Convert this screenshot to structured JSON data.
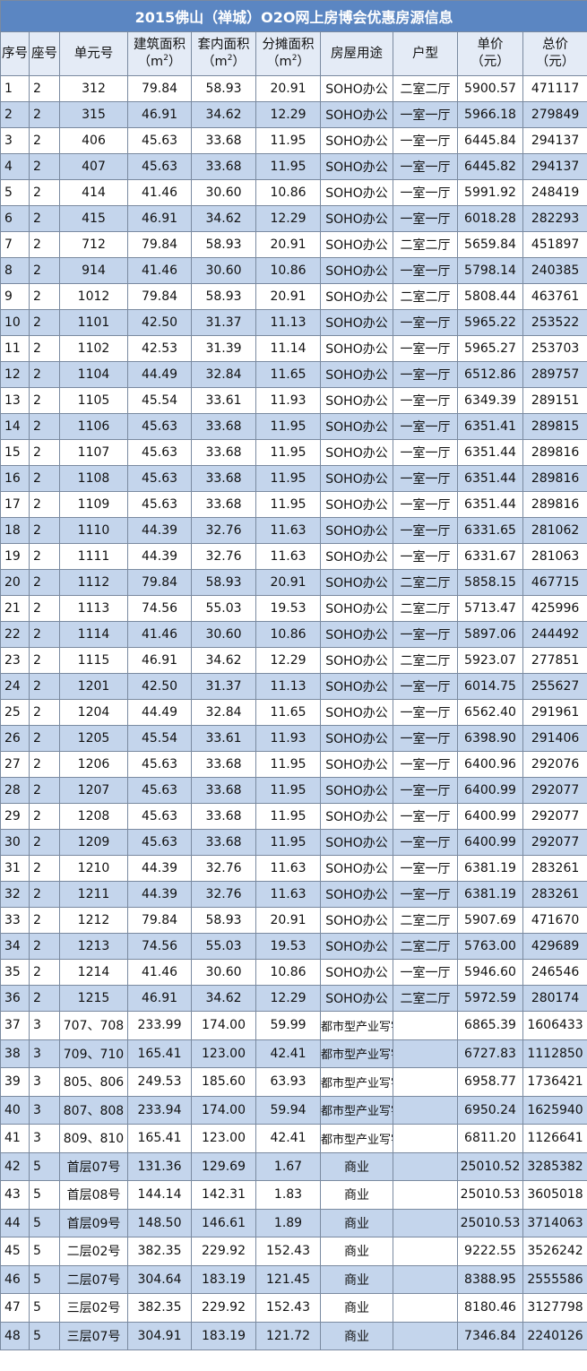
{
  "title": "2015佛山（禅城）O2O网上房博会优惠房源信息",
  "headers": {
    "index": "序号",
    "block": "座号",
    "unit": "单元号",
    "gross_area": "建筑面积",
    "inner_area": "套内面积",
    "shared_area": "分摊面积",
    "area_unit_open": "（m",
    "area_unit_sup": "2",
    "area_unit_close": "）",
    "usage": "房屋用途",
    "layout": "户型",
    "unit_price": "单价",
    "total_price": "总价",
    "currency": "（元）"
  },
  "rows": [
    {
      "no": "1",
      "block": "2",
      "unit": "312",
      "gross": "79.84",
      "inner": "58.93",
      "shared": "20.91",
      "usage": "SOHO办公",
      "layout": "二室二厅",
      "price": "5900.57",
      "total": "471117"
    },
    {
      "no": "2",
      "block": "2",
      "unit": "315",
      "gross": "46.91",
      "inner": "34.62",
      "shared": "12.29",
      "usage": "SOHO办公",
      "layout": "一室一厅",
      "price": "5966.18",
      "total": "279849"
    },
    {
      "no": "3",
      "block": "2",
      "unit": "406",
      "gross": "45.63",
      "inner": "33.68",
      "shared": "11.95",
      "usage": "SOHO办公",
      "layout": "一室一厅",
      "price": "6445.84",
      "total": "294137"
    },
    {
      "no": "4",
      "block": "2",
      "unit": "407",
      "gross": "45.63",
      "inner": "33.68",
      "shared": "11.95",
      "usage": "SOHO办公",
      "layout": "一室一厅",
      "price": "6445.82",
      "total": "294137"
    },
    {
      "no": "5",
      "block": "2",
      "unit": "414",
      "gross": "41.46",
      "inner": "30.60",
      "shared": "10.86",
      "usage": "SOHO办公",
      "layout": "一室一厅",
      "price": "5991.92",
      "total": "248419"
    },
    {
      "no": "6",
      "block": "2",
      "unit": "415",
      "gross": "46.91",
      "inner": "34.62",
      "shared": "12.29",
      "usage": "SOHO办公",
      "layout": "一室一厅",
      "price": "6018.28",
      "total": "282293"
    },
    {
      "no": "7",
      "block": "2",
      "unit": "712",
      "gross": "79.84",
      "inner": "58.93",
      "shared": "20.91",
      "usage": "SOHO办公",
      "layout": "二室二厅",
      "price": "5659.84",
      "total": "451897"
    },
    {
      "no": "8",
      "block": "2",
      "unit": "914",
      "gross": "41.46",
      "inner": "30.60",
      "shared": "10.86",
      "usage": "SOHO办公",
      "layout": "一室一厅",
      "price": "5798.14",
      "total": "240385"
    },
    {
      "no": "9",
      "block": "2",
      "unit": "1012",
      "gross": "79.84",
      "inner": "58.93",
      "shared": "20.91",
      "usage": "SOHO办公",
      "layout": "二室二厅",
      "price": "5808.44",
      "total": "463761"
    },
    {
      "no": "10",
      "block": "2",
      "unit": "1101",
      "gross": "42.50",
      "inner": "31.37",
      "shared": "11.13",
      "usage": "SOHO办公",
      "layout": "一室一厅",
      "price": "5965.22",
      "total": "253522"
    },
    {
      "no": "11",
      "block": "2",
      "unit": "1102",
      "gross": "42.53",
      "inner": "31.39",
      "shared": "11.14",
      "usage": "SOHO办公",
      "layout": "一室一厅",
      "price": "5965.27",
      "total": "253703"
    },
    {
      "no": "12",
      "block": "2",
      "unit": "1104",
      "gross": "44.49",
      "inner": "32.84",
      "shared": "11.65",
      "usage": "SOHO办公",
      "layout": "一室一厅",
      "price": "6512.86",
      "total": "289757"
    },
    {
      "no": "13",
      "block": "2",
      "unit": "1105",
      "gross": "45.54",
      "inner": "33.61",
      "shared": "11.93",
      "usage": "SOHO办公",
      "layout": "一室一厅",
      "price": "6349.39",
      "total": "289151"
    },
    {
      "no": "14",
      "block": "2",
      "unit": "1106",
      "gross": "45.63",
      "inner": "33.68",
      "shared": "11.95",
      "usage": "SOHO办公",
      "layout": "一室一厅",
      "price": "6351.41",
      "total": "289815"
    },
    {
      "no": "15",
      "block": "2",
      "unit": "1107",
      "gross": "45.63",
      "inner": "33.68",
      "shared": "11.95",
      "usage": "SOHO办公",
      "layout": "一室一厅",
      "price": "6351.44",
      "total": "289816"
    },
    {
      "no": "16",
      "block": "2",
      "unit": "1108",
      "gross": "45.63",
      "inner": "33.68",
      "shared": "11.95",
      "usage": "SOHO办公",
      "layout": "一室一厅",
      "price": "6351.44",
      "total": "289816"
    },
    {
      "no": "17",
      "block": "2",
      "unit": "1109",
      "gross": "45.63",
      "inner": "33.68",
      "shared": "11.95",
      "usage": "SOHO办公",
      "layout": "一室一厅",
      "price": "6351.44",
      "total": "289816"
    },
    {
      "no": "18",
      "block": "2",
      "unit": "1110",
      "gross": "44.39",
      "inner": "32.76",
      "shared": "11.63",
      "usage": "SOHO办公",
      "layout": "一室一厅",
      "price": "6331.65",
      "total": "281062"
    },
    {
      "no": "19",
      "block": "2",
      "unit": "1111",
      "gross": "44.39",
      "inner": "32.76",
      "shared": "11.63",
      "usage": "SOHO办公",
      "layout": "一室一厅",
      "price": "6331.67",
      "total": "281063"
    },
    {
      "no": "20",
      "block": "2",
      "unit": "1112",
      "gross": "79.84",
      "inner": "58.93",
      "shared": "20.91",
      "usage": "SOHO办公",
      "layout": "二室二厅",
      "price": "5858.15",
      "total": "467715"
    },
    {
      "no": "21",
      "block": "2",
      "unit": "1113",
      "gross": "74.56",
      "inner": "55.03",
      "shared": "19.53",
      "usage": "SOHO办公",
      "layout": "二室二厅",
      "price": "5713.47",
      "total": "425996"
    },
    {
      "no": "22",
      "block": "2",
      "unit": "1114",
      "gross": "41.46",
      "inner": "30.60",
      "shared": "10.86",
      "usage": "SOHO办公",
      "layout": "一室一厅",
      "price": "5897.06",
      "total": "244492"
    },
    {
      "no": "23",
      "block": "2",
      "unit": "1115",
      "gross": "46.91",
      "inner": "34.62",
      "shared": "12.29",
      "usage": "SOHO办公",
      "layout": "二室二厅",
      "price": "5923.07",
      "total": "277851"
    },
    {
      "no": "24",
      "block": "2",
      "unit": "1201",
      "gross": "42.50",
      "inner": "31.37",
      "shared": "11.13",
      "usage": "SOHO办公",
      "layout": "一室一厅",
      "price": "6014.75",
      "total": "255627"
    },
    {
      "no": "25",
      "block": "2",
      "unit": "1204",
      "gross": "44.49",
      "inner": "32.84",
      "shared": "11.65",
      "usage": "SOHO办公",
      "layout": "一室一厅",
      "price": "6562.40",
      "total": "291961"
    },
    {
      "no": "26",
      "block": "2",
      "unit": "1205",
      "gross": "45.54",
      "inner": "33.61",
      "shared": "11.93",
      "usage": "SOHO办公",
      "layout": "一室一厅",
      "price": "6398.90",
      "total": "291406"
    },
    {
      "no": "27",
      "block": "2",
      "unit": "1206",
      "gross": "45.63",
      "inner": "33.68",
      "shared": "11.95",
      "usage": "SOHO办公",
      "layout": "一室一厅",
      "price": "6400.96",
      "total": "292076"
    },
    {
      "no": "28",
      "block": "2",
      "unit": "1207",
      "gross": "45.63",
      "inner": "33.68",
      "shared": "11.95",
      "usage": "SOHO办公",
      "layout": "一室一厅",
      "price": "6400.99",
      "total": "292077"
    },
    {
      "no": "29",
      "block": "2",
      "unit": "1208",
      "gross": "45.63",
      "inner": "33.68",
      "shared": "11.95",
      "usage": "SOHO办公",
      "layout": "一室一厅",
      "price": "6400.99",
      "total": "292077"
    },
    {
      "no": "30",
      "block": "2",
      "unit": "1209",
      "gross": "45.63",
      "inner": "33.68",
      "shared": "11.95",
      "usage": "SOHO办公",
      "layout": "一室一厅",
      "price": "6400.99",
      "total": "292077"
    },
    {
      "no": "31",
      "block": "2",
      "unit": "1210",
      "gross": "44.39",
      "inner": "32.76",
      "shared": "11.63",
      "usage": "SOHO办公",
      "layout": "一室一厅",
      "price": "6381.19",
      "total": "283261"
    },
    {
      "no": "32",
      "block": "2",
      "unit": "1211",
      "gross": "44.39",
      "inner": "32.76",
      "shared": "11.63",
      "usage": "SOHO办公",
      "layout": "一室一厅",
      "price": "6381.19",
      "total": "283261"
    },
    {
      "no": "33",
      "block": "2",
      "unit": "1212",
      "gross": "79.84",
      "inner": "58.93",
      "shared": "20.91",
      "usage": "SOHO办公",
      "layout": "二室二厅",
      "price": "5907.69",
      "total": "471670"
    },
    {
      "no": "34",
      "block": "2",
      "unit": "1213",
      "gross": "74.56",
      "inner": "55.03",
      "shared": "19.53",
      "usage": "SOHO办公",
      "layout": "二室二厅",
      "price": "5763.00",
      "total": "429689"
    },
    {
      "no": "35",
      "block": "2",
      "unit": "1214",
      "gross": "41.46",
      "inner": "30.60",
      "shared": "10.86",
      "usage": "SOHO办公",
      "layout": "一室一厅",
      "price": "5946.60",
      "total": "246546"
    },
    {
      "no": "36",
      "block": "2",
      "unit": "1215",
      "gross": "46.91",
      "inner": "34.62",
      "shared": "12.29",
      "usage": "SOHO办公",
      "layout": "二室二厅",
      "price": "5972.59",
      "total": "280174"
    },
    {
      "no": "37",
      "block": "3",
      "unit": "707、708",
      "gross": "233.99",
      "inner": "174.00",
      "shared": "59.99",
      "usage": "都市型产业写字楼",
      "layout": "",
      "price": "6865.39",
      "total": "1606433"
    },
    {
      "no": "38",
      "block": "3",
      "unit": "709、710",
      "gross": "165.41",
      "inner": "123.00",
      "shared": "42.41",
      "usage": "都市型产业写字楼",
      "layout": "",
      "price": "6727.83",
      "total": "1112850"
    },
    {
      "no": "39",
      "block": "3",
      "unit": "805、806",
      "gross": "249.53",
      "inner": "185.60",
      "shared": "63.93",
      "usage": "都市型产业写字楼",
      "layout": "",
      "price": "6958.77",
      "total": "1736421"
    },
    {
      "no": "40",
      "block": "3",
      "unit": "807、808",
      "gross": "233.94",
      "inner": "174.00",
      "shared": "59.94",
      "usage": "都市型产业写字楼",
      "layout": "",
      "price": "6950.24",
      "total": "1625940"
    },
    {
      "no": "41",
      "block": "3",
      "unit": "809、810",
      "gross": "165.41",
      "inner": "123.00",
      "shared": "42.41",
      "usage": "都市型产业写字楼",
      "layout": "",
      "price": "6811.20",
      "total": "1126641"
    },
    {
      "no": "42",
      "block": "5",
      "unit": "首层07号",
      "gross": "131.36",
      "inner": "129.69",
      "shared": "1.67",
      "usage": "商业",
      "layout": "",
      "price": "25010.52",
      "total": "3285382"
    },
    {
      "no": "43",
      "block": "5",
      "unit": "首层08号",
      "gross": "144.14",
      "inner": "142.31",
      "shared": "1.83",
      "usage": "商业",
      "layout": "",
      "price": "25010.53",
      "total": "3605018"
    },
    {
      "no": "44",
      "block": "5",
      "unit": "首层09号",
      "gross": "148.50",
      "inner": "146.61",
      "shared": "1.89",
      "usage": "商业",
      "layout": "",
      "price": "25010.53",
      "total": "3714063"
    },
    {
      "no": "45",
      "block": "5",
      "unit": "二层02号",
      "gross": "382.35",
      "inner": "229.92",
      "shared": "152.43",
      "usage": "商业",
      "layout": "",
      "price": "9222.55",
      "total": "3526242"
    },
    {
      "no": "46",
      "block": "5",
      "unit": "二层07号",
      "gross": "304.64",
      "inner": "183.19",
      "shared": "121.45",
      "usage": "商业",
      "layout": "",
      "price": "8388.95",
      "total": "2555586"
    },
    {
      "no": "47",
      "block": "5",
      "unit": "三层02号",
      "gross": "382.35",
      "inner": "229.92",
      "shared": "152.43",
      "usage": "商业",
      "layout": "",
      "price": "8180.46",
      "total": "3127798"
    },
    {
      "no": "48",
      "block": "5",
      "unit": "三层07号",
      "gross": "304.91",
      "inner": "183.19",
      "shared": "121.72",
      "usage": "商业",
      "layout": "",
      "price": "7346.84",
      "total": "2240126"
    }
  ]
}
